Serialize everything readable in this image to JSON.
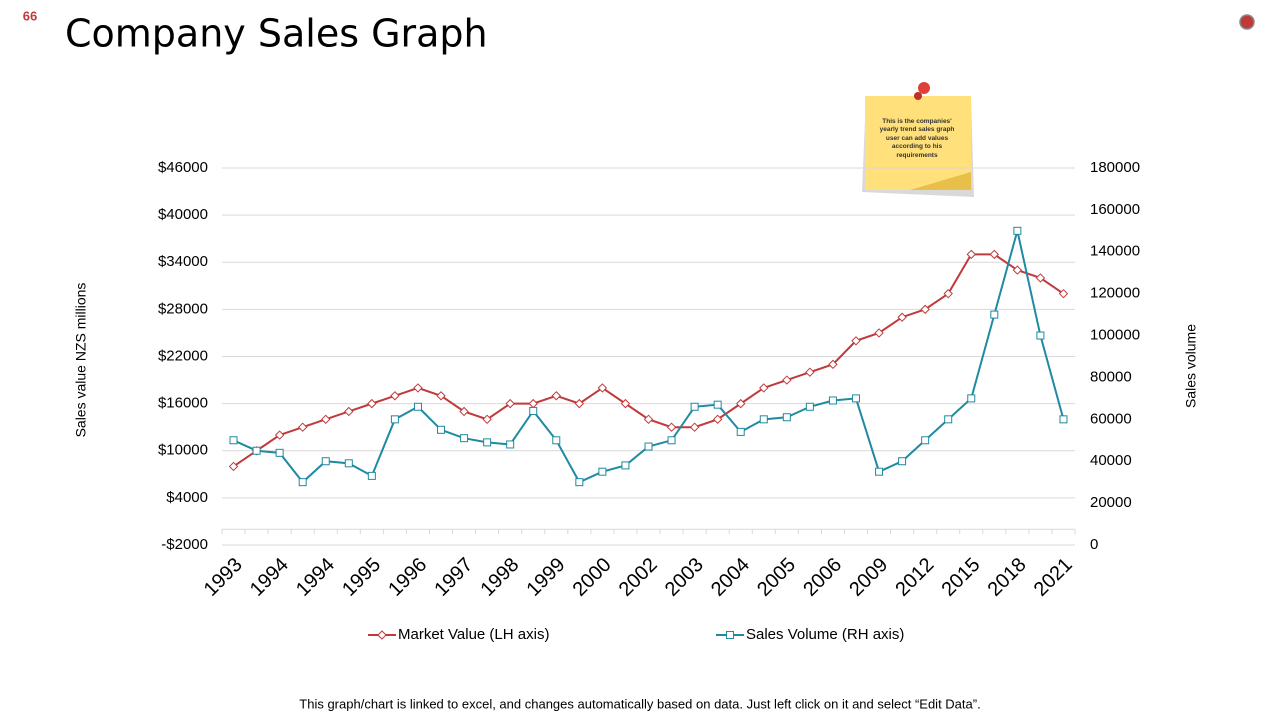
{
  "slide_number": "66",
  "footer": "This graph/chart is linked to excel, and changes automatically based on data. Just left click on it and select “Edit Data”.",
  "note": {
    "text": "This is the companies' yearly trend sales graph user can add values according to his requirements"
  },
  "chart_data": {
    "type": "line",
    "title": "Company Sales Graph",
    "ylabel": "Sales value NZS millions",
    "y2label": "Sales volume",
    "categories": [
      "1993",
      null,
      "1994",
      null,
      "1994",
      null,
      "1995",
      null,
      "1996",
      null,
      "1997",
      null,
      "1998",
      null,
      "1999",
      null,
      "2000",
      null,
      "2002",
      null,
      "2003",
      null,
      "2004",
      null,
      "2005",
      null,
      "2006",
      null,
      "2009",
      null,
      "2012",
      null,
      "2015",
      null,
      "2018",
      null,
      "2021"
    ],
    "series": [
      {
        "name": "Market Value (LH axis)",
        "color": "#c0393b",
        "axis": "y",
        "marker": "diamond",
        "values": [
          8000,
          10000,
          12000,
          13000,
          14000,
          15000,
          16000,
          17000,
          18000,
          17000,
          15000,
          14000,
          16000,
          16000,
          17000,
          16000,
          18000,
          16000,
          14000,
          13000,
          13000,
          14000,
          16000,
          18000,
          19000,
          20000,
          21000,
          24000,
          25000,
          27000,
          28000,
          30000,
          35000,
          35000,
          33000,
          32000,
          30000
        ]
      },
      {
        "name": "Sales Volume (RH axis)",
        "color": "#1f8aa1",
        "axis": "y2",
        "marker": "square",
        "values": [
          50000,
          45000,
          44000,
          30000,
          40000,
          39000,
          33000,
          60000,
          66000,
          55000,
          51000,
          49000,
          48000,
          64000,
          50000,
          30000,
          35000,
          38000,
          47000,
          50000,
          66000,
          67000,
          54000,
          60000,
          61000,
          66000,
          69000,
          70000,
          35000,
          40000,
          50000,
          60000,
          70000,
          110000,
          150000,
          100000,
          60000
        ]
      }
    ],
    "ylim": [
      -2000,
      46000
    ],
    "yticks": [
      {
        "value": -2000,
        "label": "-$2000"
      },
      {
        "value": 4000,
        "label": "$4000"
      },
      {
        "value": 10000,
        "label": "$10000"
      },
      {
        "value": 16000,
        "label": "$16000"
      },
      {
        "value": 22000,
        "label": "$22000"
      },
      {
        "value": 28000,
        "label": "$28000"
      },
      {
        "value": 34000,
        "label": "$34000"
      },
      {
        "value": 40000,
        "label": "$40000"
      },
      {
        "value": 46000,
        "label": "$46000"
      }
    ],
    "y2lim": [
      0,
      180000
    ],
    "y2ticks": [
      0,
      20000,
      40000,
      60000,
      80000,
      100000,
      120000,
      140000,
      160000,
      180000
    ],
    "grid": true,
    "legend": "bottom"
  }
}
